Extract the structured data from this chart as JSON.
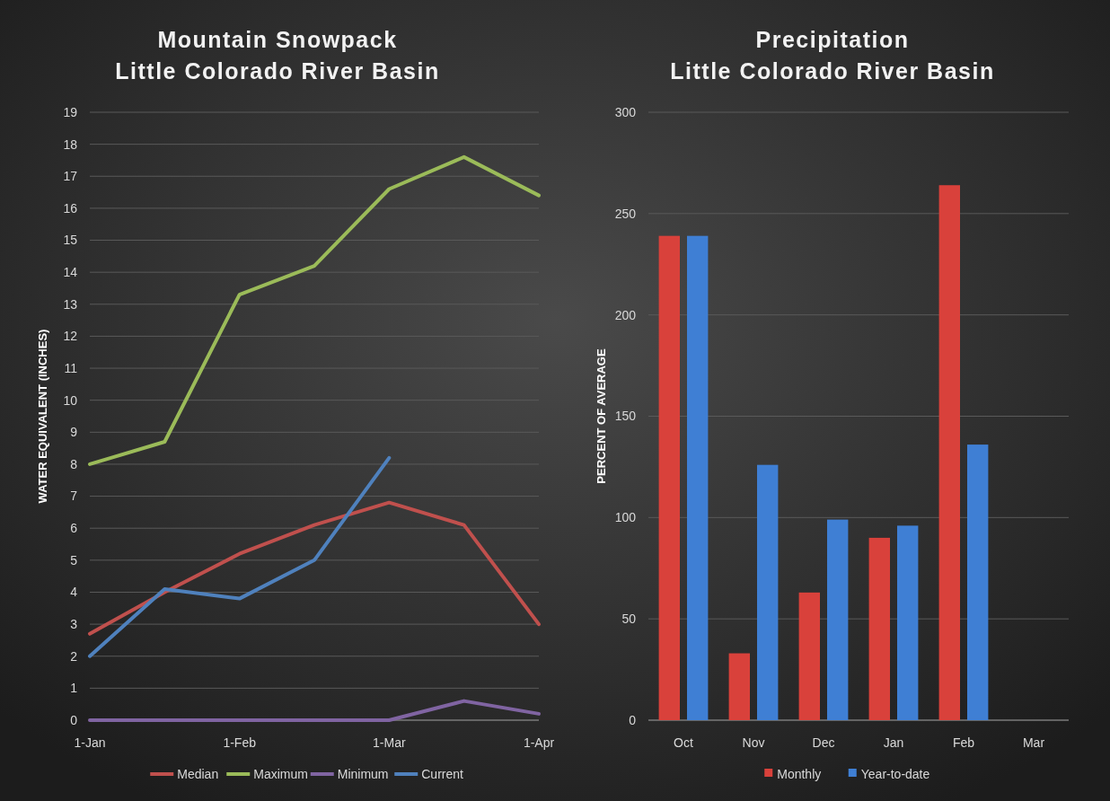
{
  "chart_data": [
    {
      "type": "line",
      "title": "Mountain Snowpack\nLittle Colorado River Basin",
      "ylabel": "WATER EQUIVALENT (INCHES)",
      "categories": [
        "1-Jan",
        null,
        "1-Feb",
        null,
        "1-Mar",
        null,
        "1-Apr"
      ],
      "ylim": [
        0,
        19
      ],
      "yticks": [
        0,
        1,
        2,
        3,
        4,
        5,
        6,
        7,
        8,
        9,
        10,
        11,
        12,
        13,
        14,
        15,
        16,
        17,
        18,
        19
      ],
      "grid": "y",
      "legend": "bottom",
      "series": [
        {
          "name": "Median",
          "color": "#c0504d",
          "values": [
            2.7,
            4.0,
            5.2,
            6.1,
            6.8,
            6.1,
            3.0
          ]
        },
        {
          "name": "Maximum",
          "color": "#9bbb59",
          "values": [
            8.0,
            8.7,
            13.3,
            14.2,
            16.6,
            17.6,
            16.4
          ]
        },
        {
          "name": "Minimum",
          "color": "#8064a2",
          "values": [
            0,
            0,
            0,
            0,
            0,
            0.6,
            0.2
          ]
        },
        {
          "name": "Current",
          "color": "#4f81bd",
          "values": [
            2.0,
            4.1,
            3.8,
            5.0,
            8.2,
            null,
            null
          ]
        }
      ]
    },
    {
      "type": "bar",
      "title": "Precipitation\nLittle Colorado River Basin",
      "ylabel": "PERCENT OF AVERAGE",
      "categories": [
        "Oct",
        "Nov",
        "Dec",
        "Jan",
        "Feb",
        "Mar"
      ],
      "ylim": [
        0,
        300
      ],
      "yticks": [
        0,
        50,
        100,
        150,
        200,
        250,
        300
      ],
      "grid": "y",
      "legend": "bottom",
      "series": [
        {
          "name": "Monthly",
          "color": "#d9413b",
          "values": [
            239,
            33,
            63,
            90,
            264,
            null
          ]
        },
        {
          "name": "Year-to-date",
          "color": "#3f7fd4",
          "values": [
            239,
            126,
            99,
            96,
            136,
            null
          ]
        }
      ]
    }
  ]
}
